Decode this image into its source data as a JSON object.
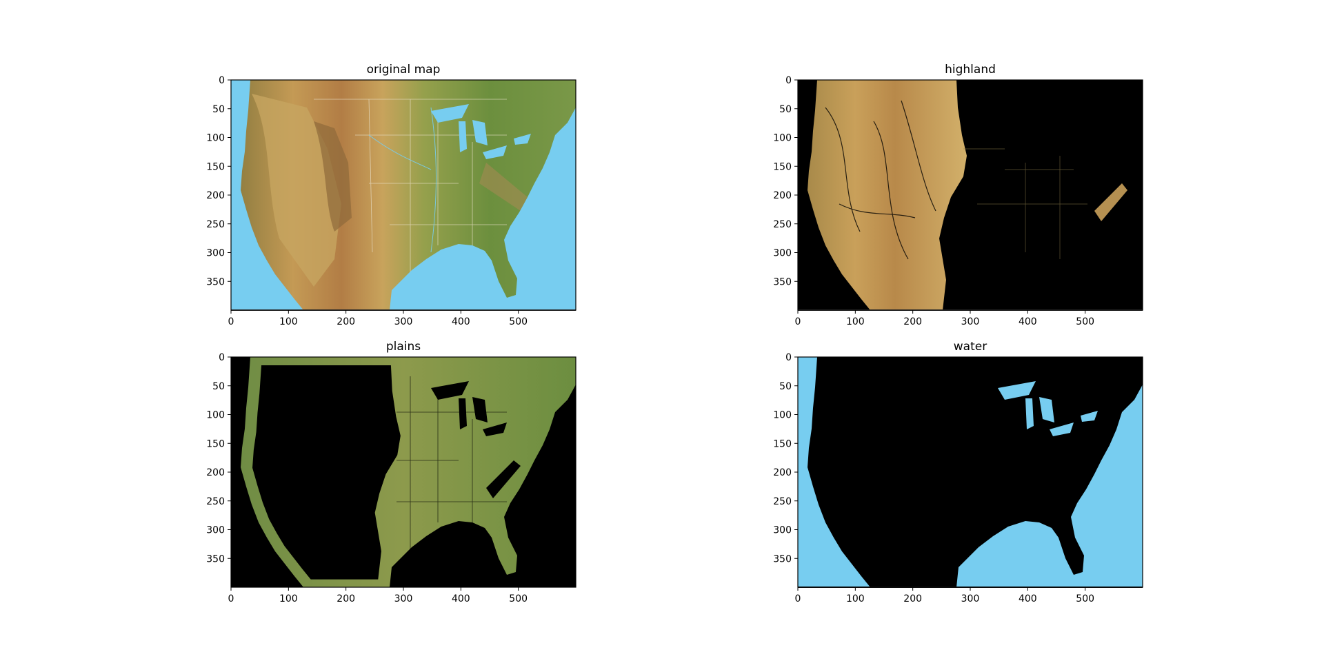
{
  "chart_data": [
    {
      "type": "image",
      "title": "original map",
      "xlim": [
        0,
        600
      ],
      "ylim": [
        400,
        0
      ],
      "xticks": [
        0,
        100,
        200,
        300,
        400,
        500
      ],
      "yticks": [
        0,
        50,
        100,
        150,
        200,
        250,
        300,
        350
      ],
      "colors": {
        "water": "#77cdf0",
        "background": "#77cdf0"
      }
    },
    {
      "type": "image",
      "title": "highland",
      "xlim": [
        0,
        600
      ],
      "ylim": [
        400,
        0
      ],
      "xticks": [
        0,
        100,
        200,
        300,
        400,
        500
      ],
      "yticks": [
        0,
        50,
        100,
        150,
        200,
        250,
        300,
        350
      ],
      "colors": {
        "background": "#000000"
      }
    },
    {
      "type": "image",
      "title": "plains",
      "xlim": [
        0,
        600
      ],
      "ylim": [
        400,
        0
      ],
      "xticks": [
        0,
        100,
        200,
        300,
        400,
        500
      ],
      "yticks": [
        0,
        50,
        100,
        150,
        200,
        250,
        300,
        350
      ],
      "colors": {
        "background": "#000000"
      }
    },
    {
      "type": "image",
      "title": "water",
      "xlim": [
        0,
        600
      ],
      "ylim": [
        400,
        0
      ],
      "xticks": [
        0,
        100,
        200,
        300,
        400,
        500
      ],
      "yticks": [
        0,
        50,
        100,
        150,
        200,
        250,
        300,
        350
      ],
      "colors": {
        "water": "#77cdf0",
        "background": "#000000"
      }
    }
  ]
}
